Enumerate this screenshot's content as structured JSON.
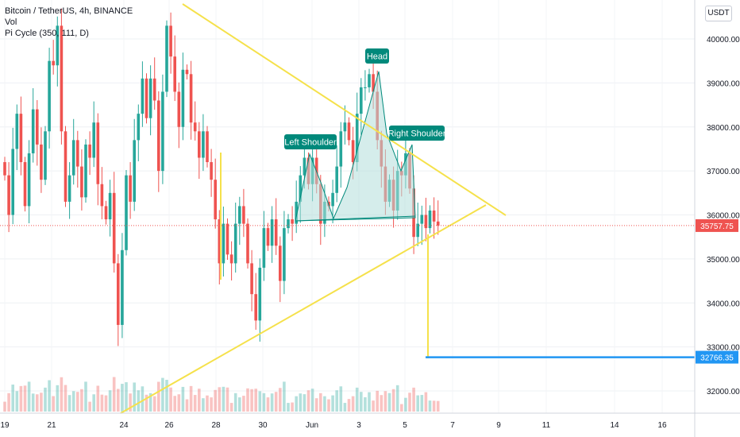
{
  "header": {
    "symbol_line": "Bitcoin / TetherUS, 4h, BINANCE",
    "vol_label": "Vol",
    "indicator_label": "Pi Cycle (350, 111, D)"
  },
  "currency_button": "USDT",
  "colors": {
    "up": "#26a69a",
    "down": "#ef5350",
    "trendline": "#f5e14b",
    "target": "#2196f3",
    "pattern_fill": "#b2dfdb",
    "pattern_label_bg": "#00897b"
  },
  "chart_data": {
    "type": "candlestick",
    "symbol": "Bitcoin / TetherUS",
    "interval": "4h",
    "exchange": "BINANCE",
    "ylim": [
      31500,
      41000
    ],
    "y_ticks": [
      "40000.00",
      "39000.00",
      "38000.00",
      "37000.00",
      "36000.00",
      "35000.00",
      "34000.00",
      "33000.00",
      "32000.00"
    ],
    "x_ticks": [
      "19",
      "21",
      "24",
      "26",
      "28",
      "30",
      "Jun",
      "3",
      "5",
      "7",
      "9",
      "11",
      "14",
      "16"
    ],
    "price_labels": {
      "last_price": "35757.75",
      "target": "32766.35"
    },
    "closes": [
      36900,
      36000,
      37500,
      38300,
      37200,
      36200,
      37400,
      38400,
      37600,
      36800,
      37900,
      39500,
      39400,
      40300,
      37900,
      36300,
      36900,
      37700,
      37100,
      36400,
      37600,
      37300,
      38100,
      36700,
      36200,
      35900,
      36500,
      34900,
      33500,
      35200,
      36900,
      36300,
      37700,
      38300,
      39100,
      38200,
      39100,
      38600,
      37000,
      38800,
      40300,
      39600,
      38800,
      38000,
      39300,
      39200,
      38100,
      37900,
      37300,
      37900,
      37200,
      36800,
      35900,
      34900,
      35800,
      35100,
      34900,
      35800,
      36200,
      35800,
      34900,
      34200,
      33600,
      34800,
      35700,
      35300,
      35900,
      35300,
      34500,
      35700,
      35900,
      35800,
      36300,
      36900,
      37300,
      36700,
      37300,
      36700,
      35800,
      36300,
      36200,
      36500,
      37100,
      37900,
      38100,
      37700,
      37200,
      38300,
      38900,
      38900,
      39200,
      38800,
      37700,
      37100,
      36300,
      36800,
      36100,
      37000,
      36900,
      37400,
      36600,
      35500,
      35800,
      36000,
      35700,
      36100,
      35850,
      35758
    ],
    "annotations": [
      "Head",
      "Left Shoulder",
      "Right Shoulder"
    ]
  }
}
